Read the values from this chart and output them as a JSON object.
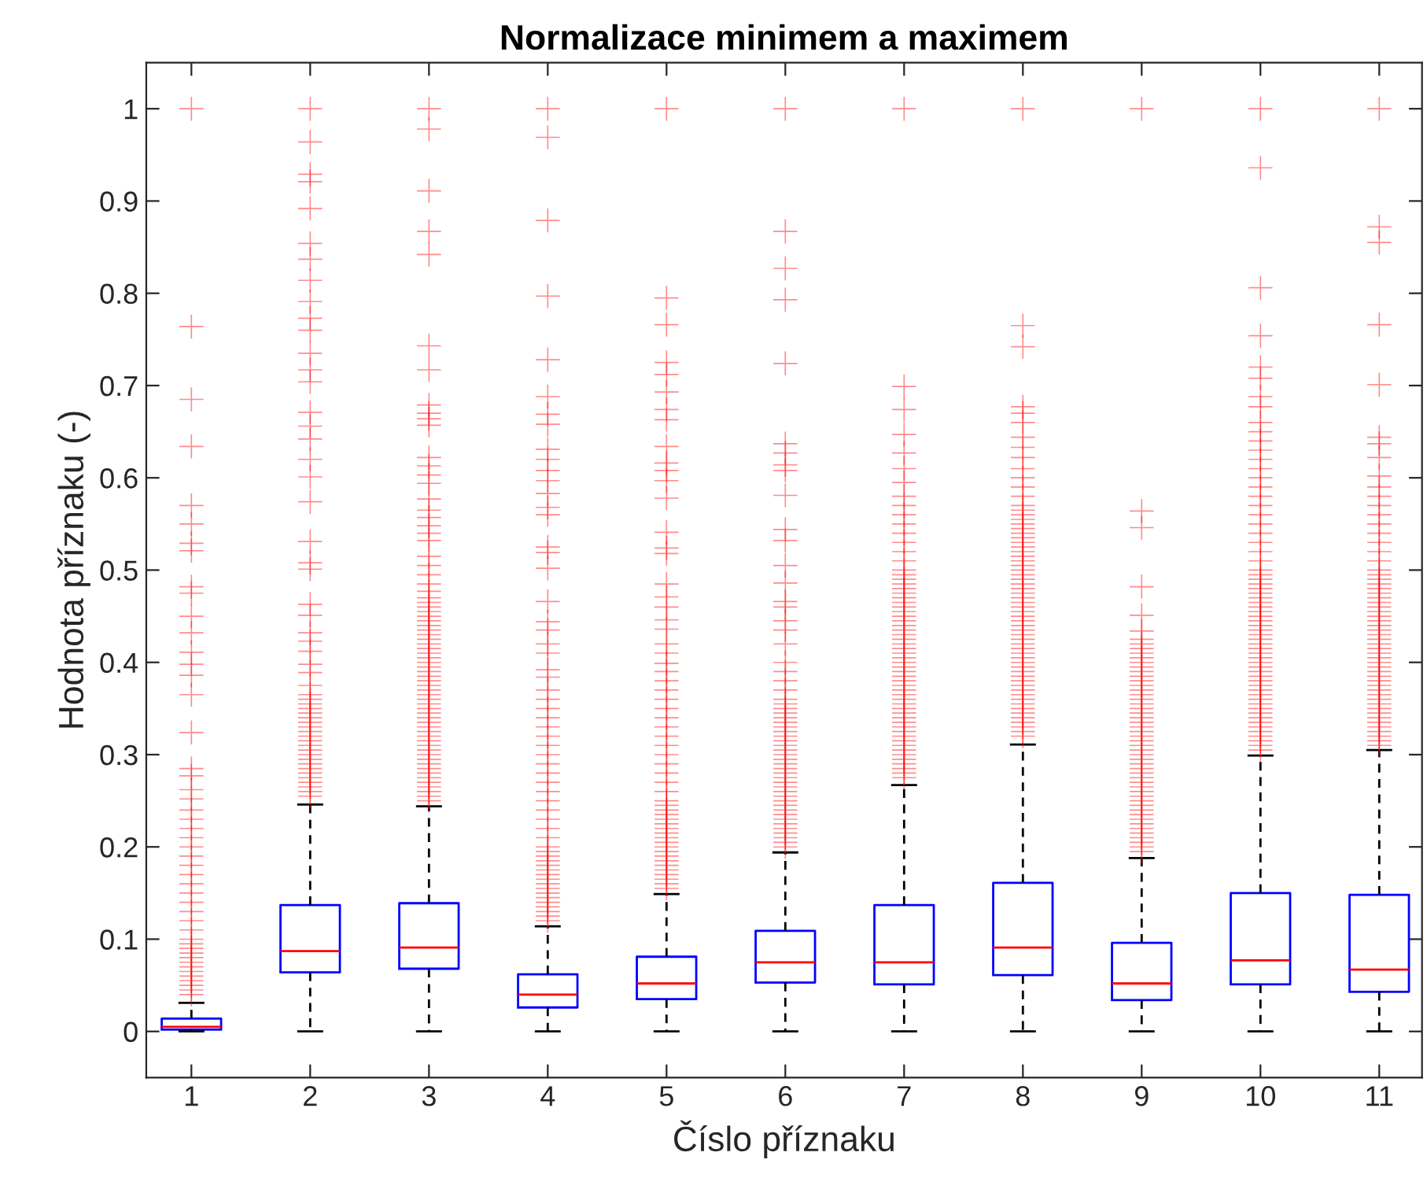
{
  "chart_data": {
    "type": "box",
    "title": "Normalizace minimem a maximem",
    "xlabel": "Číslo příznaku",
    "ylabel": "Hodnota příznaku (-)",
    "categories": [
      "1",
      "2",
      "3",
      "4",
      "5",
      "6",
      "7",
      "8",
      "9",
      "10",
      "11"
    ],
    "ylim": [
      -0.05,
      1.05
    ],
    "yticks": [
      0,
      0.1,
      0.2,
      0.3,
      0.4,
      0.5,
      0.6,
      0.7,
      0.8,
      0.9,
      1
    ],
    "series": [
      {
        "color": "#0000ff",
        "boxes": [
          {
            "low": 0,
            "q1": 0.002,
            "median": 0.005,
            "q3": 0.014,
            "high": 0.031,
            "outliers": [
              1,
              0.764,
              0.685,
              0.634,
              0.57,
              0.55,
              0.529,
              0.521,
              0.482,
              0.475,
              0.45,
              0.432,
              0.411,
              0.398,
              0.386,
              0.365,
              0.324,
              0.285,
              0.277,
              0.262,
              0.252,
              0.24,
              0.23,
              0.22,
              0.21,
              0.2,
              0.19,
              0.18,
              0.17,
              0.16,
              0.15,
              0.14,
              0.13,
              0.12,
              0.11,
              0.1,
              0.095,
              0.09,
              0.085,
              0.08,
              0.075,
              0.07,
              0.065,
              0.06,
              0.055,
              0.05,
              0.045,
              0.04
            ]
          },
          {
            "low": 0,
            "q1": 0.064,
            "median": 0.087,
            "q3": 0.137,
            "high": 0.246,
            "outliers": [
              1,
              0.964,
              0.929,
              0.921,
              0.892,
              0.854,
              0.837,
              0.814,
              0.791,
              0.773,
              0.76,
              0.735,
              0.717,
              0.704,
              0.671,
              0.656,
              0.642,
              0.62,
              0.601,
              0.574,
              0.531,
              0.508,
              0.501,
              0.463,
              0.451,
              0.432,
              0.423,
              0.412,
              0.398,
              0.389,
              0.375,
              0.365,
              0.36,
              0.355,
              0.35,
              0.345,
              0.34,
              0.335,
              0.33,
              0.325,
              0.32,
              0.315,
              0.31,
              0.305,
              0.3,
              0.295,
              0.29,
              0.285,
              0.28,
              0.275,
              0.27,
              0.265,
              0.26,
              0.255
            ]
          },
          {
            "low": 0,
            "q1": 0.068,
            "median": 0.091,
            "q3": 0.139,
            "high": 0.244,
            "outliers": [
              1,
              0.978,
              0.911,
              0.867,
              0.842,
              0.743,
              0.717,
              0.679,
              0.67,
              0.664,
              0.657,
              0.622,
              0.613,
              0.603,
              0.594,
              0.577,
              0.565,
              0.557,
              0.548,
              0.54,
              0.532,
              0.515,
              0.505,
              0.495,
              0.485,
              0.477,
              0.47,
              0.465,
              0.46,
              0.455,
              0.45,
              0.445,
              0.44,
              0.435,
              0.43,
              0.425,
              0.42,
              0.415,
              0.41,
              0.405,
              0.4,
              0.395,
              0.39,
              0.385,
              0.38,
              0.375,
              0.37,
              0.365,
              0.36,
              0.355,
              0.35,
              0.345,
              0.34,
              0.335,
              0.33,
              0.325,
              0.32,
              0.315,
              0.31,
              0.305,
              0.3,
              0.295,
              0.29,
              0.285,
              0.28,
              0.275,
              0.27,
              0.265,
              0.26,
              0.255,
              0.25
            ]
          },
          {
            "low": 0,
            "q1": 0.026,
            "median": 0.04,
            "q3": 0.062,
            "high": 0.114,
            "outliers": [
              1,
              0.969,
              0.879,
              0.797,
              0.728,
              0.688,
              0.669,
              0.658,
              0.631,
              0.62,
              0.608,
              0.597,
              0.583,
              0.568,
              0.56,
              0.525,
              0.519,
              0.502,
              0.466,
              0.444,
              0.435,
              0.42,
              0.41,
              0.392,
              0.384,
              0.37,
              0.36,
              0.35,
              0.34,
              0.33,
              0.32,
              0.31,
              0.3,
              0.29,
              0.28,
              0.27,
              0.26,
              0.25,
              0.24,
              0.23,
              0.22,
              0.21,
              0.2,
              0.195,
              0.19,
              0.185,
              0.18,
              0.175,
              0.17,
              0.165,
              0.16,
              0.155,
              0.15,
              0.145,
              0.14,
              0.135,
              0.13,
              0.125,
              0.12
            ]
          },
          {
            "low": 0,
            "q1": 0.035,
            "median": 0.052,
            "q3": 0.081,
            "high": 0.149,
            "outliers": [
              1,
              0.795,
              0.766,
              0.725,
              0.712,
              0.693,
              0.674,
              0.663,
              0.634,
              0.616,
              0.608,
              0.597,
              0.578,
              0.541,
              0.524,
              0.518,
              0.485,
              0.471,
              0.46,
              0.446,
              0.436,
              0.42,
              0.41,
              0.399,
              0.39,
              0.38,
              0.37,
              0.36,
              0.35,
              0.34,
              0.33,
              0.32,
              0.31,
              0.3,
              0.29,
              0.28,
              0.27,
              0.26,
              0.25,
              0.245,
              0.24,
              0.235,
              0.23,
              0.225,
              0.22,
              0.215,
              0.21,
              0.205,
              0.2,
              0.195,
              0.19,
              0.185,
              0.18,
              0.175,
              0.17,
              0.165,
              0.16,
              0.155
            ]
          },
          {
            "low": 0,
            "q1": 0.053,
            "median": 0.075,
            "q3": 0.109,
            "high": 0.194,
            "outliers": [
              1,
              0.867,
              0.827,
              0.793,
              0.724,
              0.637,
              0.627,
              0.614,
              0.608,
              0.581,
              0.544,
              0.532,
              0.505,
              0.486,
              0.466,
              0.46,
              0.445,
              0.435,
              0.42,
              0.4,
              0.39,
              0.38,
              0.37,
              0.36,
              0.355,
              0.35,
              0.345,
              0.34,
              0.335,
              0.33,
              0.325,
              0.32,
              0.315,
              0.31,
              0.305,
              0.3,
              0.295,
              0.29,
              0.285,
              0.28,
              0.275,
              0.27,
              0.265,
              0.26,
              0.255,
              0.25,
              0.245,
              0.24,
              0.235,
              0.23,
              0.225,
              0.22,
              0.215,
              0.21,
              0.205,
              0.2
            ]
          },
          {
            "low": 0,
            "q1": 0.051,
            "median": 0.075,
            "q3": 0.137,
            "high": 0.267,
            "outliers": [
              1,
              0.699,
              0.674,
              0.647,
              0.627,
              0.61,
              0.595,
              0.58,
              0.57,
              0.56,
              0.55,
              0.54,
              0.53,
              0.52,
              0.51,
              0.5,
              0.495,
              0.49,
              0.485,
              0.48,
              0.475,
              0.47,
              0.465,
              0.46,
              0.455,
              0.45,
              0.445,
              0.44,
              0.435,
              0.43,
              0.425,
              0.42,
              0.415,
              0.41,
              0.405,
              0.4,
              0.395,
              0.39,
              0.385,
              0.38,
              0.375,
              0.37,
              0.365,
              0.36,
              0.355,
              0.35,
              0.345,
              0.34,
              0.335,
              0.33,
              0.325,
              0.32,
              0.315,
              0.31,
              0.305,
              0.3,
              0.295,
              0.29,
              0.285,
              0.28,
              0.275
            ]
          },
          {
            "low": 0,
            "q1": 0.061,
            "median": 0.091,
            "q3": 0.161,
            "high": 0.311,
            "outliers": [
              1,
              0.765,
              0.742,
              0.677,
              0.67,
              0.66,
              0.644,
              0.633,
              0.622,
              0.61,
              0.6,
              0.59,
              0.58,
              0.57,
              0.565,
              0.56,
              0.555,
              0.55,
              0.545,
              0.54,
              0.535,
              0.53,
              0.525,
              0.52,
              0.515,
              0.51,
              0.505,
              0.5,
              0.495,
              0.49,
              0.485,
              0.48,
              0.475,
              0.47,
              0.465,
              0.46,
              0.455,
              0.45,
              0.445,
              0.44,
              0.435,
              0.43,
              0.425,
              0.42,
              0.415,
              0.41,
              0.405,
              0.4,
              0.395,
              0.39,
              0.385,
              0.38,
              0.375,
              0.37,
              0.365,
              0.36,
              0.355,
              0.35,
              0.345,
              0.34,
              0.335,
              0.33,
              0.325,
              0.32
            ]
          },
          {
            "low": 0,
            "q1": 0.034,
            "median": 0.052,
            "q3": 0.096,
            "high": 0.188,
            "outliers": [
              1,
              0.564,
              0.546,
              0.482,
              0.451,
              0.434,
              0.425,
              0.42,
              0.415,
              0.41,
              0.405,
              0.4,
              0.395,
              0.39,
              0.385,
              0.38,
              0.375,
              0.37,
              0.365,
              0.36,
              0.355,
              0.35,
              0.345,
              0.34,
              0.335,
              0.33,
              0.325,
              0.32,
              0.315,
              0.31,
              0.305,
              0.3,
              0.295,
              0.29,
              0.285,
              0.28,
              0.275,
              0.27,
              0.265,
              0.26,
              0.255,
              0.25,
              0.245,
              0.24,
              0.235,
              0.23,
              0.225,
              0.22,
              0.215,
              0.21,
              0.205,
              0.2,
              0.195
            ]
          },
          {
            "low": 0,
            "q1": 0.051,
            "median": 0.077,
            "q3": 0.15,
            "high": 0.299,
            "outliers": [
              1,
              0.936,
              0.806,
              0.754,
              0.72,
              0.708,
              0.688,
              0.677,
              0.66,
              0.65,
              0.64,
              0.63,
              0.62,
              0.61,
              0.6,
              0.59,
              0.58,
              0.57,
              0.56,
              0.55,
              0.54,
              0.53,
              0.52,
              0.51,
              0.5,
              0.495,
              0.49,
              0.485,
              0.48,
              0.475,
              0.47,
              0.465,
              0.46,
              0.455,
              0.45,
              0.445,
              0.44,
              0.435,
              0.43,
              0.425,
              0.42,
              0.415,
              0.41,
              0.405,
              0.4,
              0.395,
              0.39,
              0.385,
              0.38,
              0.375,
              0.37,
              0.365,
              0.36,
              0.355,
              0.35,
              0.345,
              0.34,
              0.335,
              0.33,
              0.325,
              0.32,
              0.315,
              0.31,
              0.305
            ]
          },
          {
            "low": 0,
            "q1": 0.043,
            "median": 0.067,
            "q3": 0.148,
            "high": 0.305,
            "outliers": [
              1,
              0.872,
              0.855,
              0.766,
              0.701,
              0.644,
              0.637,
              0.622,
              0.602,
              0.59,
              0.58,
              0.57,
              0.56,
              0.55,
              0.54,
              0.53,
              0.52,
              0.51,
              0.5,
              0.495,
              0.49,
              0.485,
              0.48,
              0.475,
              0.47,
              0.465,
              0.46,
              0.455,
              0.45,
              0.445,
              0.44,
              0.435,
              0.43,
              0.425,
              0.42,
              0.415,
              0.41,
              0.405,
              0.4,
              0.395,
              0.39,
              0.385,
              0.38,
              0.375,
              0.37,
              0.365,
              0.36,
              0.355,
              0.35,
              0.345,
              0.34,
              0.335,
              0.33,
              0.325,
              0.32,
              0.315,
              0.31
            ]
          }
        ]
      }
    ]
  }
}
